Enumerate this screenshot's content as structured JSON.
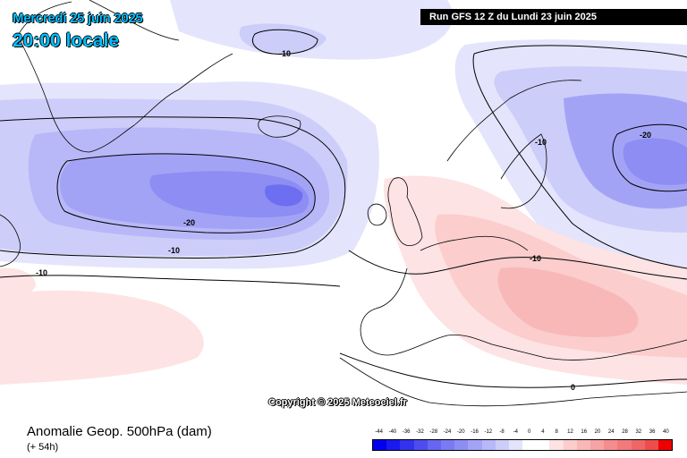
{
  "header": {
    "date_title": "Mercredi 25 juin 2025",
    "time_title": "20:00 locale",
    "run_info": "Run GFS 12 Z du Lundi 23 juin 2025"
  },
  "footer": {
    "copyright": "Copyright © 2025 Meteociel.fr",
    "title": "Anomalie Geop. 500hPa (dam)",
    "lead": "(+ 54h)"
  },
  "map": {
    "contour_labels": [
      "-10",
      "-10",
      "-20",
      "-20",
      "-10",
      "-10",
      "-10",
      "0"
    ]
  },
  "colorscale": {
    "labels": [
      "-44",
      "-40",
      "-36",
      "-32",
      "-28",
      "-24",
      "-20",
      "-16",
      "-12",
      "-8",
      "-4",
      "0",
      "4",
      "8",
      "12",
      "16",
      "20",
      "24",
      "28",
      "32",
      "36",
      "40"
    ],
    "colors": [
      "#0000ee",
      "#1a1aee",
      "#3333ee",
      "#4d4def",
      "#6666f0",
      "#7a7af2",
      "#8d8df4",
      "#a3a3f6",
      "#b8b8f8",
      "#cdcdfa",
      "#e3e3fc",
      "#ffffff",
      "#ffffff",
      "#fde3e3",
      "#fbcdcd",
      "#f8b8b8",
      "#f6a3a3",
      "#f48d8d",
      "#f27a7a",
      "#f06666",
      "#ef4d4d",
      "#ee0000"
    ]
  }
}
